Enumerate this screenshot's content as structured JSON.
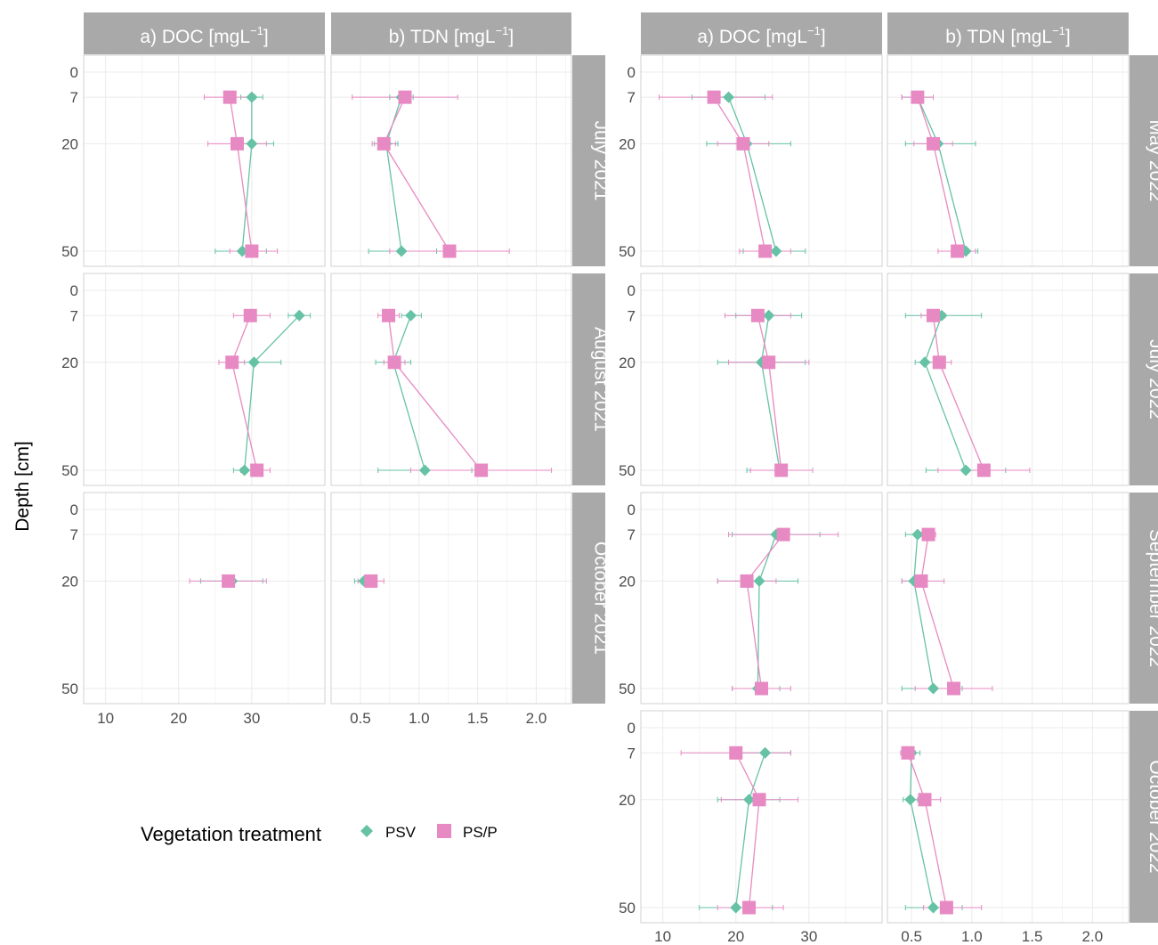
{
  "colors": {
    "PSV": "#66C2A5",
    "PS/P": "#E78AC3",
    "strip": "#a9a9a9",
    "grid": "#ebebeb",
    "border": "#d0d0d0"
  },
  "y_axis_label": "Depth [cm]",
  "legend": {
    "title": "Vegetation treatment",
    "items": [
      "PSV",
      "PS/P"
    ]
  },
  "chart_data": [
    {
      "type": "scatter",
      "ylabel": "Depth [cm]",
      "y_ticks": [
        0,
        7,
        20,
        50
      ],
      "y_reversed": true,
      "columns": [
        {
          "label": "a) DOC [mgL",
          "sup": "−1",
          "suffix": "]",
          "ticks": [
            "10",
            "20",
            "30"
          ],
          "tick_values": [
            10,
            20,
            30
          ],
          "xlim": [
            7,
            40
          ]
        },
        {
          "label": "b) TDN [mgL",
          "sup": "−1",
          "suffix": "]",
          "ticks": [
            "0.5",
            "1.0",
            "1.5",
            "2.0"
          ],
          "tick_values": [
            0.5,
            1.0,
            1.5,
            2.0
          ],
          "xlim": [
            0.25,
            2.3
          ]
        }
      ],
      "rows": [
        {
          "label": "July 2021",
          "cols": [
            [
              {
                "name": "PSV",
                "points": [
                  [
                    7,
                    30,
                    28.5,
                    31.5
                  ],
                  [
                    20,
                    30,
                    27.5,
                    33
                  ],
                  [
                    50,
                    28.7,
                    25,
                    32
                  ]
                ]
              },
              {
                "name": "PS/P",
                "points": [
                  [
                    7,
                    27,
                    23.5,
                    30.5
                  ],
                  [
                    20,
                    28,
                    24,
                    32
                  ],
                  [
                    50,
                    30,
                    27,
                    33.5
                  ]
                ]
              }
            ],
            [
              {
                "name": "PSV",
                "points": [
                  [
                    7,
                    0.85,
                    0.75,
                    0.95
                  ],
                  [
                    20,
                    0.72,
                    0.62,
                    0.82
                  ],
                  [
                    50,
                    0.85,
                    0.57,
                    1.15
                  ]
                ]
              },
              {
                "name": "PS/P",
                "points": [
                  [
                    7,
                    0.88,
                    0.43,
                    1.33
                  ],
                  [
                    20,
                    0.7,
                    0.6,
                    0.8
                  ],
                  [
                    50,
                    1.26,
                    0.75,
                    1.77
                  ]
                ]
              }
            ]
          ]
        },
        {
          "label": "August 2021",
          "cols": [
            [
              {
                "name": "PSV",
                "points": [
                  [
                    7,
                    36.5,
                    35,
                    38
                  ],
                  [
                    20,
                    30.3,
                    26.5,
                    34
                  ],
                  [
                    50,
                    29,
                    27.5,
                    30.5
                  ]
                ]
              },
              {
                "name": "PS/P",
                "points": [
                  [
                    7,
                    29.8,
                    27.5,
                    32.5
                  ],
                  [
                    20,
                    27.3,
                    25.5,
                    29
                  ],
                  [
                    50,
                    30.7,
                    28.5,
                    32.5
                  ]
                ]
              }
            ],
            [
              {
                "name": "PSV",
                "points": [
                  [
                    7,
                    0.93,
                    0.85,
                    1.02
                  ],
                  [
                    20,
                    0.78,
                    0.63,
                    0.93
                  ],
                  [
                    50,
                    1.05,
                    0.65,
                    1.45
                  ]
                ]
              },
              {
                "name": "PS/P",
                "points": [
                  [
                    7,
                    0.74,
                    0.65,
                    0.83
                  ],
                  [
                    20,
                    0.79,
                    0.7,
                    0.88
                  ],
                  [
                    50,
                    1.53,
                    0.93,
                    2.13
                  ]
                ]
              }
            ]
          ]
        },
        {
          "label": "October 2021",
          "cols": [
            [
              {
                "name": "PSV",
                "points": [
                  [
                    20,
                    27.3,
                    23,
                    31.5
                  ]
                ]
              },
              {
                "name": "PS/P",
                "points": [
                  [
                    20,
                    26.8,
                    21.5,
                    32
                  ]
                ]
              }
            ],
            [
              {
                "name": "PSV",
                "points": [
                  [
                    20,
                    0.53,
                    0.45,
                    0.61
                  ]
                ]
              },
              {
                "name": "PS/P",
                "points": [
                  [
                    20,
                    0.59,
                    0.48,
                    0.7
                  ]
                ]
              }
            ]
          ]
        }
      ]
    },
    {
      "type": "scatter",
      "ylabel": "Depth [cm]",
      "y_ticks": [
        0,
        7,
        20,
        50
      ],
      "y_reversed": true,
      "columns": [
        {
          "label": "a) DOC [mgL",
          "sup": "−1",
          "suffix": "]",
          "ticks": [
            "10",
            "20",
            "30"
          ],
          "tick_values": [
            10,
            20,
            30
          ],
          "xlim": [
            7,
            40
          ]
        },
        {
          "label": "b) TDN [mgL",
          "sup": "−1",
          "suffix": "]",
          "ticks": [
            "0.5",
            "1.0",
            "1.5",
            "2.0"
          ],
          "tick_values": [
            0.5,
            1.0,
            1.5,
            2.0
          ],
          "xlim": [
            0.3,
            2.3
          ]
        }
      ],
      "rows": [
        {
          "label": "May 2022",
          "cols": [
            [
              {
                "name": "PSV",
                "points": [
                  [
                    7,
                    19,
                    14,
                    24
                  ],
                  [
                    20,
                    21.5,
                    16,
                    27.5
                  ],
                  [
                    50,
                    25.5,
                    21,
                    29.5
                  ]
                ]
              },
              {
                "name": "PS/P",
                "points": [
                  [
                    7,
                    17,
                    9.5,
                    25
                  ],
                  [
                    20,
                    21,
                    17.5,
                    24.5
                  ],
                  [
                    50,
                    24,
                    20.5,
                    27.5
                  ]
                ]
              }
            ],
            [
              {
                "name": "PSV",
                "points": [
                  [
                    7,
                    0.55,
                    0.42,
                    0.68
                  ],
                  [
                    20,
                    0.72,
                    0.45,
                    1.03
                  ],
                  [
                    50,
                    0.95,
                    0.85,
                    1.05
                  ]
                ]
              },
              {
                "name": "PS/P",
                "points": [
                  [
                    7,
                    0.55,
                    0.42,
                    0.68
                  ],
                  [
                    20,
                    0.68,
                    0.52,
                    0.84
                  ],
                  [
                    50,
                    0.88,
                    0.72,
                    1.03
                  ]
                ]
              }
            ]
          ]
        },
        {
          "label": "July 2022",
          "cols": [
            [
              {
                "name": "PSV",
                "points": [
                  [
                    7,
                    24.5,
                    20,
                    29
                  ],
                  [
                    20,
                    23.5,
                    17.5,
                    29.5
                  ],
                  [
                    50,
                    26,
                    21.5,
                    30.5
                  ]
                ]
              },
              {
                "name": "PS/P",
                "points": [
                  [
                    7,
                    23,
                    18.5,
                    27.5
                  ],
                  [
                    20,
                    24.5,
                    19,
                    30
                  ],
                  [
                    50,
                    26.2,
                    22,
                    30.5
                  ]
                ]
              }
            ],
            [
              {
                "name": "PSV",
                "points": [
                  [
                    7,
                    0.75,
                    0.45,
                    1.08
                  ],
                  [
                    20,
                    0.61,
                    0.53,
                    0.7
                  ],
                  [
                    50,
                    0.95,
                    0.62,
                    1.28
                  ]
                ]
              },
              {
                "name": "PS/P",
                "points": [
                  [
                    7,
                    0.68,
                    0.58,
                    0.78
                  ],
                  [
                    20,
                    0.73,
                    0.63,
                    0.83
                  ],
                  [
                    50,
                    1.1,
                    0.72,
                    1.48
                  ]
                ]
              }
            ]
          ]
        },
        {
          "label": "September 2022",
          "cols": [
            [
              {
                "name": "PSV",
                "points": [
                  [
                    7,
                    25.5,
                    19.5,
                    31.5
                  ],
                  [
                    20,
                    23.2,
                    17.5,
                    28.5
                  ],
                  [
                    50,
                    23,
                    19.5,
                    26
                  ]
                ]
              },
              {
                "name": "PS/P",
                "points": [
                  [
                    7,
                    26.5,
                    19,
                    34
                  ],
                  [
                    20,
                    21.5,
                    17.5,
                    25.5
                  ],
                  [
                    50,
                    23.5,
                    19.5,
                    27.5
                  ]
                ]
              }
            ],
            [
              {
                "name": "PSV",
                "points": [
                  [
                    7,
                    0.55,
                    0.45,
                    0.65
                  ],
                  [
                    20,
                    0.52,
                    0.42,
                    0.62
                  ],
                  [
                    50,
                    0.68,
                    0.42,
                    0.92
                  ]
                ]
              },
              {
                "name": "PS/P",
                "points": [
                  [
                    7,
                    0.64,
                    0.58,
                    0.7
                  ],
                  [
                    20,
                    0.58,
                    0.42,
                    0.77
                  ],
                  [
                    50,
                    0.85,
                    0.53,
                    1.17
                  ]
                ]
              }
            ]
          ]
        },
        {
          "label": "October 2022",
          "cols": [
            [
              {
                "name": "PSV",
                "points": [
                  [
                    7,
                    24,
                    20.5,
                    27.5
                  ],
                  [
                    20,
                    21.8,
                    17.5,
                    26
                  ],
                  [
                    50,
                    20,
                    15,
                    25
                  ]
                ]
              },
              {
                "name": "PS/P",
                "points": [
                  [
                    7,
                    20,
                    12.5,
                    27.5
                  ],
                  [
                    20,
                    23.2,
                    18,
                    28.5
                  ],
                  [
                    50,
                    21.8,
                    17.5,
                    26.5
                  ]
                ]
              }
            ],
            [
              {
                "name": "PSV",
                "points": [
                  [
                    7,
                    0.5,
                    0.43,
                    0.57
                  ],
                  [
                    20,
                    0.49,
                    0.43,
                    0.55
                  ],
                  [
                    50,
                    0.68,
                    0.45,
                    0.92
                  ]
                ]
              },
              {
                "name": "PS/P",
                "points": [
                  [
                    7,
                    0.47,
                    0.41,
                    0.53
                  ],
                  [
                    20,
                    0.61,
                    0.48,
                    0.74
                  ],
                  [
                    50,
                    0.79,
                    0.6,
                    1.08
                  ]
                ]
              }
            ]
          ]
        }
      ]
    }
  ]
}
